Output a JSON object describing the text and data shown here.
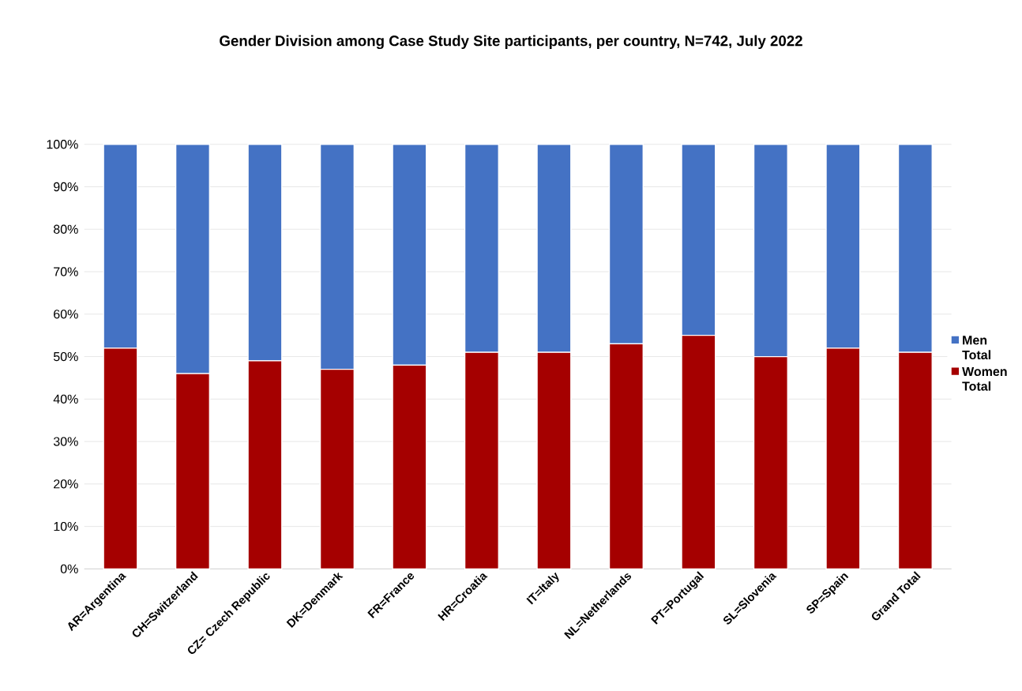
{
  "chart_data": {
    "type": "bar",
    "stacked": true,
    "title": "Gender Division among Case Study Site participants, per country, N=742, July 2022",
    "categories": [
      "AR=Argentina",
      "CH=Switzerland",
      "CZ= Czech Republic",
      "DK=Denmark",
      "FR=France",
      "HR=Croatia",
      "IT=Italy",
      "NL=Netherlands",
      "PT=Portugal",
      "SL=Slovenia",
      "SP=Spain",
      "Grand Total"
    ],
    "series": [
      {
        "name": "Women Total",
        "color": "#a50000",
        "values": [
          52,
          46,
          49,
          47,
          48,
          51,
          51,
          53,
          55,
          50,
          52,
          51
        ]
      },
      {
        "name": "Men Total",
        "color": "#4472c4",
        "values": [
          48,
          54,
          51,
          53,
          52,
          49,
          49,
          47,
          45,
          50,
          48,
          49
        ]
      }
    ],
    "ylim": [
      0,
      100
    ],
    "yticks": [
      {
        "value": 0,
        "label": "0%"
      },
      {
        "value": 10,
        "label": "10%"
      },
      {
        "value": 20,
        "label": "20%"
      },
      {
        "value": 30,
        "label": "30%"
      },
      {
        "value": 40,
        "label": "40%"
      },
      {
        "value": 50,
        "label": "50%"
      },
      {
        "value": 60,
        "label": "60%"
      },
      {
        "value": 70,
        "label": "70%"
      },
      {
        "value": 80,
        "label": "80%"
      },
      {
        "value": 90,
        "label": "90%"
      },
      {
        "value": 100,
        "label": "100%"
      }
    ],
    "grid": "y",
    "legend": "right"
  }
}
